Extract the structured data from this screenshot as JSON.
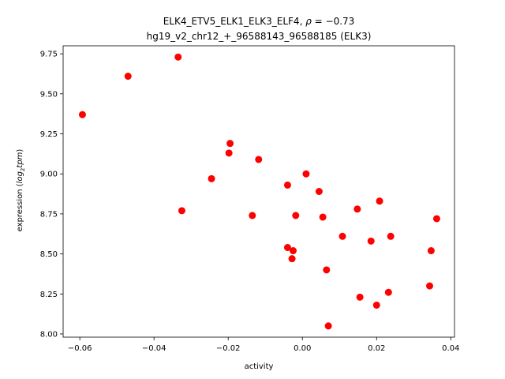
{
  "chart_data": {
    "type": "scatter",
    "title_line1_pre": "ELK4_ETV5_ELK1_ELK3_ELF4, ",
    "title_rho_symbol": "ρ",
    "title_rho_eq": " = −0.73",
    "title_line2": "hg19_v2_chr12_+_96588143_96588185 (ELK3)",
    "xlabel": "activity",
    "ylabel_pre": "expression (",
    "ylabel_log": "log",
    "ylabel_sub": "2",
    "ylabel_tpm": "tpm",
    "ylabel_post": ")",
    "xlim": [
      -0.0645,
      0.041
    ],
    "ylim": [
      7.98,
      9.8
    ],
    "xticks": [
      -0.06,
      -0.04,
      -0.02,
      0.0,
      0.02,
      0.04
    ],
    "xtick_labels": [
      "−0.06",
      "−0.04",
      "−0.02",
      "0.00",
      "0.02",
      "0.04"
    ],
    "yticks": [
      8.0,
      8.25,
      8.5,
      8.75,
      9.0,
      9.25,
      9.5,
      9.75
    ],
    "ytick_labels": [
      "8.00",
      "8.25",
      "8.50",
      "8.75",
      "9.00",
      "9.25",
      "9.50",
      "9.75"
    ],
    "marker_color": "#ff0000",
    "points": [
      {
        "x": -0.0593,
        "y": 9.37
      },
      {
        "x": -0.047,
        "y": 9.61
      },
      {
        "x": -0.0335,
        "y": 9.73
      },
      {
        "x": -0.0325,
        "y": 8.77
      },
      {
        "x": -0.0245,
        "y": 8.97
      },
      {
        "x": -0.0195,
        "y": 9.19
      },
      {
        "x": -0.0198,
        "y": 9.13
      },
      {
        "x": -0.0118,
        "y": 9.09
      },
      {
        "x": -0.0135,
        "y": 8.74
      },
      {
        "x": -0.004,
        "y": 8.93
      },
      {
        "x": -0.004,
        "y": 8.54
      },
      {
        "x": -0.0025,
        "y": 8.52
      },
      {
        "x": -0.0028,
        "y": 8.47
      },
      {
        "x": -0.0018,
        "y": 8.74
      },
      {
        "x": 0.001,
        "y": 9.0
      },
      {
        "x": 0.0045,
        "y": 8.89
      },
      {
        "x": 0.0055,
        "y": 8.73
      },
      {
        "x": 0.0065,
        "y": 8.4
      },
      {
        "x": 0.007,
        "y": 8.05
      },
      {
        "x": 0.0108,
        "y": 8.61
      },
      {
        "x": 0.0148,
        "y": 8.78
      },
      {
        "x": 0.0155,
        "y": 8.23
      },
      {
        "x": 0.0185,
        "y": 8.58
      },
      {
        "x": 0.02,
        "y": 8.18
      },
      {
        "x": 0.0208,
        "y": 8.83
      },
      {
        "x": 0.0232,
        "y": 8.26
      },
      {
        "x": 0.0238,
        "y": 8.61
      },
      {
        "x": 0.0343,
        "y": 8.3
      },
      {
        "x": 0.0347,
        "y": 8.52
      },
      {
        "x": 0.0362,
        "y": 8.72
      }
    ]
  }
}
